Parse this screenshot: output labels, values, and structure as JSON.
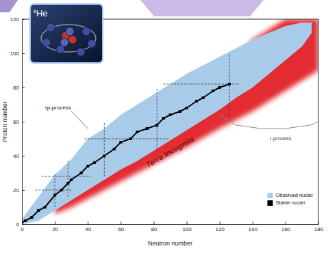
{
  "chart_data": {
    "type": "area",
    "x_label": "Neutron number",
    "y_label": "Proton number",
    "xlim": [
      0,
      180
    ],
    "ylim": [
      0,
      120
    ],
    "xticks": [
      0,
      20,
      40,
      60,
      80,
      100,
      120,
      140,
      160,
      180
    ],
    "yticks": [
      0,
      20,
      40,
      60,
      80,
      100,
      120
    ],
    "legend": "lower right",
    "series": [
      {
        "type": "area",
        "color": "#e0141e",
        "x": [
          20,
          30,
          40,
          60,
          80,
          100,
          120,
          140,
          160,
          180
        ],
        "values": [
          14,
          20,
          26,
          38,
          50,
          62,
          80,
          108,
          120,
          120
        ],
        "lower": [
          6,
          10,
          15,
          25,
          35,
          45,
          56,
          66,
          78,
          90
        ]
      },
      {
        "name": "Observed nuclei",
        "type": "area",
        "color": "#a9cbea",
        "x": [
          0,
          10,
          20,
          30,
          40,
          50,
          60,
          70,
          80,
          90,
          100,
          110,
          120,
          130,
          140,
          150,
          160,
          170,
          176
        ],
        "values": [
          3,
          16,
          29,
          38,
          50,
          56,
          64,
          70,
          76,
          82,
          88,
          93,
          98,
          103,
          108,
          112,
          116,
          118,
          118
        ],
        "lower": [
          0,
          2,
          8,
          14,
          20,
          26,
          32,
          37,
          43,
          49,
          55,
          61,
          67,
          74,
          80,
          88,
          96,
          104,
          112
        ]
      },
      {
        "name": "Stable nuclei",
        "type": "line",
        "marker": "square",
        "color": "#000000",
        "x": [
          0,
          2,
          6,
          10,
          14,
          20,
          24,
          28,
          30,
          36,
          40,
          44,
          50,
          56,
          60,
          66,
          70,
          76,
          82,
          86,
          90,
          96,
          100,
          106,
          110,
          116,
          120,
          126
        ],
        "values": [
          1,
          2,
          4,
          8,
          10,
          17,
          20,
          24,
          26,
          30,
          34,
          36,
          40,
          44,
          48,
          50,
          54,
          56,
          58,
          62,
          64,
          66,
          68,
          72,
          74,
          78,
          80,
          82
        ]
      },
      {
        "type": "line",
        "color": "#8c8c8c",
        "x": [
          120,
          130,
          145,
          160,
          175,
          180
        ],
        "values": [
          64,
          58,
          56,
          56,
          58,
          60
        ]
      }
    ],
    "reference_lines": [
      {
        "axis": "x",
        "value": 20,
        "range": [
          10,
          30
        ]
      },
      {
        "axis": "x",
        "value": 28,
        "range": [
          16,
          38
        ]
      },
      {
        "axis": "x",
        "value": 50,
        "range": [
          28,
          60
        ]
      },
      {
        "axis": "x",
        "value": 82,
        "range": [
          44,
          80
        ]
      },
      {
        "axis": "x",
        "value": 126,
        "range": [
          60,
          100
        ]
      },
      {
        "axis": "y",
        "value": 20,
        "range": [
          8,
          30
        ]
      },
      {
        "axis": "y",
        "value": 28,
        "range": [
          12,
          42
        ]
      },
      {
        "axis": "y",
        "value": 50,
        "range": [
          38,
          90
        ]
      },
      {
        "axis": "y",
        "value": 82,
        "range": [
          86,
          132
        ]
      }
    ],
    "annotations": [
      {
        "text": "rp-process",
        "x": 22,
        "y": 68,
        "point": [
          40,
          56
        ]
      },
      {
        "text": "r-process",
        "x": 157,
        "y": 50
      },
      {
        "text": "Terra Incognita",
        "x": 90,
        "y": 42
      }
    ],
    "inset": {
      "mass_number": 8,
      "symbol": "He"
    }
  }
}
